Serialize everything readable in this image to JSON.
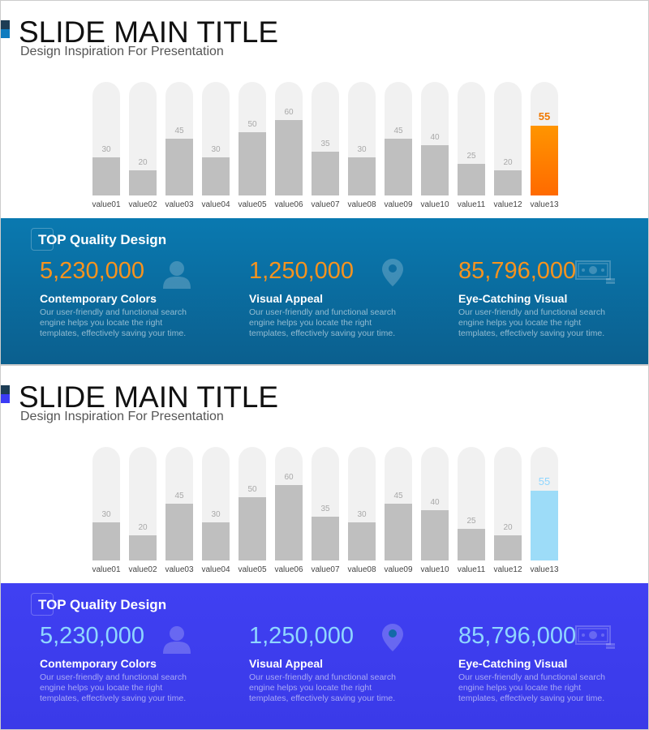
{
  "slides": [
    {
      "title": "SLIDE MAIN TITLE",
      "subtitle": "Design Inspiration For Presentation",
      "colors": {
        "mark": "#0f7bbf",
        "panel_top": "#0a79b0",
        "panel_bottom": "#0b5f8e",
        "number": "#f7931e",
        "highlight_bar": "#ff7a00",
        "highlight_label": "#f07800"
      },
      "panel": {
        "heading": "TOP Quality Design",
        "items": [
          {
            "number": "5,230,000",
            "title": "Contemporary Colors",
            "text": "Our user-friendly and functional search engine helps you locate the right templates, effectively saving your time.",
            "icon": "user-icon"
          },
          {
            "number": "1,250,000",
            "title": "Visual Appeal",
            "text": "Our user-friendly and functional search engine helps you locate the right templates, effectively saving your time.",
            "icon": "location-pin-icon"
          },
          {
            "number": "85,796,000",
            "title": "Eye-Catching Visual",
            "text": "Our user-friendly and functional search engine helps you locate the right templates, effectively saving your time.",
            "icon": "money-bill-icon"
          }
        ]
      }
    },
    {
      "title": "SLIDE MAIN TITLE",
      "subtitle": "Design Inspiration For Presentation",
      "colors": {
        "mark": "#3b3bf5",
        "panel_top": "#4040f2",
        "panel_bottom": "#3a3ae8",
        "number": "#8fd6ff",
        "highlight_bar": "#9ddcf8",
        "highlight_label": "#8fd6ff"
      },
      "panel": {
        "heading": "TOP Quality Design",
        "items": [
          {
            "number": "5,230,000",
            "title": "Contemporary Colors",
            "text": "Our user-friendly and functional search engine helps you locate the right templates, effectively saving your time.",
            "icon": "user-icon"
          },
          {
            "number": "1,250,000",
            "title": "Visual Appeal",
            "text": "Our user-friendly and functional search engine helps you locate the right templates, effectively saving your time.",
            "icon": "location-pin-icon"
          },
          {
            "number": "85,796,000",
            "title": "Eye-Catching Visual",
            "text": "Our user-friendly and functional search engine helps you locate the right templates, effectively saving your time.",
            "icon": "money-bill-icon"
          }
        ]
      }
    }
  ],
  "chart_data": {
    "type": "bar",
    "categories": [
      "value01",
      "value02",
      "value03",
      "value04",
      "value05",
      "value06",
      "value07",
      "value08",
      "value09",
      "value10",
      "value11",
      "value12",
      "value13"
    ],
    "values": [
      30,
      20,
      45,
      30,
      50,
      60,
      35,
      30,
      45,
      40,
      25,
      20,
      55
    ],
    "highlight_index": 12,
    "ylim": [
      0,
      90
    ]
  }
}
